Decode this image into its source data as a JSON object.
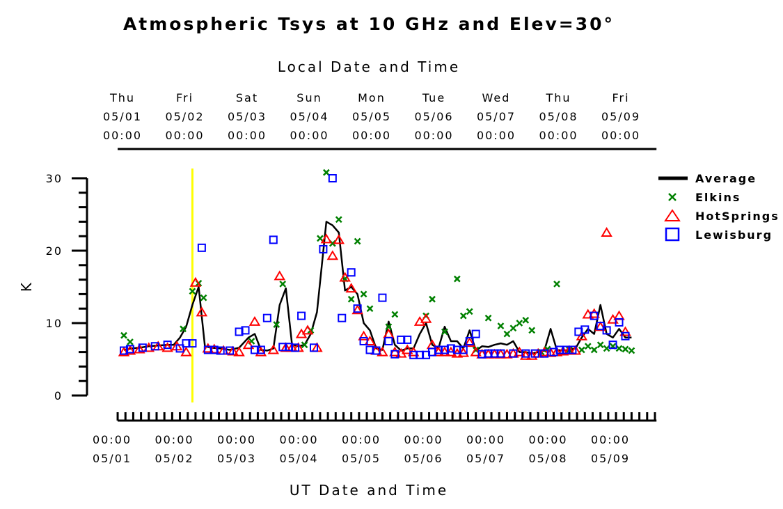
{
  "chart_data": {
    "type": "line",
    "title": "Atmospheric Tsys at 10 GHz and Elev=30°",
    "top_axis_title": "Local Date and Time",
    "bottom_axis_title": "UT Date and Time",
    "ylabel": "K",
    "ylim": [
      0,
      30
    ],
    "y_ticks": [
      0,
      10,
      20,
      30
    ],
    "x_range_days": [
      -0.1,
      8.55
    ],
    "marker_day": 1.1,
    "marker_color": "#ffff00",
    "top_ticks": [
      {
        "day": "Thu",
        "date": "05/01",
        "time": "00:00"
      },
      {
        "day": "Fri",
        "date": "05/02",
        "time": "00:00"
      },
      {
        "day": "Sat",
        "date": "05/03",
        "time": "00:00"
      },
      {
        "day": "Sun",
        "date": "05/04",
        "time": "00:00"
      },
      {
        "day": "Mon",
        "date": "05/05",
        "time": "00:00"
      },
      {
        "day": "Tue",
        "date": "05/06",
        "time": "00:00"
      },
      {
        "day": "Wed",
        "date": "05/07",
        "time": "00:00"
      },
      {
        "day": "Thu",
        "date": "05/08",
        "time": "00:00"
      },
      {
        "day": "Fri",
        "date": "05/09",
        "time": "00:00"
      }
    ],
    "bottom_ticks": [
      {
        "time": "00:00",
        "date": "05/01"
      },
      {
        "time": "00:00",
        "date": "05/02"
      },
      {
        "time": "00:00",
        "date": "05/03"
      },
      {
        "time": "00:00",
        "date": "05/04"
      },
      {
        "time": "00:00",
        "date": "05/05"
      },
      {
        "time": "00:00",
        "date": "05/06"
      },
      {
        "time": "00:00",
        "date": "05/07"
      },
      {
        "time": "00:00",
        "date": "05/08"
      },
      {
        "time": "00:00",
        "date": "05/09"
      }
    ],
    "legend_position": "right",
    "series": [
      {
        "name": "Average",
        "style": "line",
        "color": "#000000",
        "points": [
          [
            0.0,
            6.3
          ],
          [
            0.12,
            6.5
          ],
          [
            0.25,
            6.6
          ],
          [
            0.4,
            6.8
          ],
          [
            0.55,
            6.9
          ],
          [
            0.7,
            7.0
          ],
          [
            0.8,
            7.0
          ],
          [
            0.9,
            8.0
          ],
          [
            1.0,
            9.5
          ],
          [
            1.1,
            12.5
          ],
          [
            1.2,
            15.0
          ],
          [
            1.3,
            6.8
          ],
          [
            1.4,
            6.6
          ],
          [
            1.55,
            6.5
          ],
          [
            1.7,
            6.3
          ],
          [
            1.85,
            6.6
          ],
          [
            2.0,
            8.0
          ],
          [
            2.1,
            8.5
          ],
          [
            2.2,
            6.3
          ],
          [
            2.3,
            6.2
          ],
          [
            2.4,
            6.5
          ],
          [
            2.5,
            12.5
          ],
          [
            2.6,
            14.8
          ],
          [
            2.7,
            7.0
          ],
          [
            2.8,
            6.8
          ],
          [
            2.9,
            7.0
          ],
          [
            3.0,
            8.5
          ],
          [
            3.1,
            11.5
          ],
          [
            3.25,
            24.0
          ],
          [
            3.35,
            23.5
          ],
          [
            3.45,
            22.5
          ],
          [
            3.55,
            14.5
          ],
          [
            3.65,
            15.0
          ],
          [
            3.75,
            14.0
          ],
          [
            3.85,
            10.0
          ],
          [
            3.95,
            9.0
          ],
          [
            4.05,
            6.5
          ],
          [
            4.15,
            6.3
          ],
          [
            4.25,
            10.2
          ],
          [
            4.35,
            7.0
          ],
          [
            4.45,
            6.2
          ],
          [
            4.55,
            6.5
          ],
          [
            4.65,
            6.5
          ],
          [
            4.75,
            8.5
          ],
          [
            4.85,
            10.0
          ],
          [
            4.95,
            7.0
          ],
          [
            5.05,
            6.5
          ],
          [
            5.15,
            9.5
          ],
          [
            5.25,
            7.5
          ],
          [
            5.35,
            7.5
          ],
          [
            5.45,
            6.5
          ],
          [
            5.55,
            9.0
          ],
          [
            5.65,
            6.2
          ],
          [
            5.75,
            6.8
          ],
          [
            5.85,
            6.7
          ],
          [
            5.95,
            7.0
          ],
          [
            6.05,
            7.2
          ],
          [
            6.15,
            7.0
          ],
          [
            6.25,
            7.5
          ],
          [
            6.35,
            6.0
          ],
          [
            6.45,
            6.0
          ],
          [
            6.55,
            5.8
          ],
          [
            6.65,
            6.0
          ],
          [
            6.75,
            6.2
          ],
          [
            6.85,
            9.2
          ],
          [
            6.95,
            6.3
          ],
          [
            7.05,
            6.2
          ],
          [
            7.15,
            6.3
          ],
          [
            7.25,
            6.5
          ],
          [
            7.35,
            8.0
          ],
          [
            7.45,
            9.2
          ],
          [
            7.55,
            8.5
          ],
          [
            7.65,
            12.5
          ],
          [
            7.75,
            8.5
          ],
          [
            7.85,
            8.0
          ],
          [
            7.95,
            9.2
          ],
          [
            8.05,
            8.0
          ],
          [
            8.15,
            8.0
          ]
        ]
      },
      {
        "name": "Elkins",
        "style": "x",
        "color": "#008000",
        "points": [
          [
            0.0,
            8.3
          ],
          [
            0.1,
            7.4
          ],
          [
            0.95,
            9.2
          ],
          [
            1.1,
            14.4
          ],
          [
            1.2,
            15.5
          ],
          [
            1.28,
            13.5
          ],
          [
            2.05,
            7.5
          ],
          [
            2.45,
            9.8
          ],
          [
            2.55,
            15.4
          ],
          [
            2.9,
            7.0
          ],
          [
            3.0,
            9.0
          ],
          [
            3.15,
            21.7
          ],
          [
            3.25,
            30.8
          ],
          [
            3.35,
            21.0
          ],
          [
            3.45,
            24.3
          ],
          [
            3.55,
            16.1
          ],
          [
            3.65,
            13.3
          ],
          [
            3.75,
            21.3
          ],
          [
            3.85,
            14.0
          ],
          [
            3.95,
            12.0
          ],
          [
            4.25,
            9.5
          ],
          [
            4.35,
            11.2
          ],
          [
            4.85,
            11.0
          ],
          [
            4.95,
            13.3
          ],
          [
            5.15,
            8.8
          ],
          [
            5.35,
            16.1
          ],
          [
            5.45,
            11.0
          ],
          [
            5.55,
            11.6
          ],
          [
            5.65,
            6.3
          ],
          [
            5.85,
            10.7
          ],
          [
            6.05,
            9.6
          ],
          [
            6.15,
            8.5
          ],
          [
            6.25,
            9.3
          ],
          [
            6.35,
            10.0
          ],
          [
            6.45,
            10.4
          ],
          [
            6.55,
            9.0
          ],
          [
            6.7,
            6.0
          ],
          [
            6.8,
            6.4
          ],
          [
            6.95,
            15.4
          ],
          [
            7.15,
            6.3
          ],
          [
            7.35,
            6.3
          ],
          [
            7.45,
            6.8
          ],
          [
            7.55,
            6.3
          ],
          [
            7.65,
            7.0
          ],
          [
            7.75,
            6.5
          ],
          [
            7.85,
            6.8
          ],
          [
            7.95,
            6.5
          ],
          [
            8.05,
            6.4
          ],
          [
            8.15,
            6.2
          ]
        ]
      },
      {
        "name": "HotSprings",
        "style": "triangle",
        "color": "#ff0000",
        "points": [
          [
            0.0,
            6.0
          ],
          [
            0.1,
            6.2
          ],
          [
            0.25,
            6.4
          ],
          [
            0.4,
            6.6
          ],
          [
            0.55,
            6.8
          ],
          [
            0.7,
            6.6
          ],
          [
            0.85,
            6.8
          ],
          [
            1.0,
            6.0
          ],
          [
            1.15,
            15.6
          ],
          [
            1.25,
            11.5
          ],
          [
            1.35,
            6.5
          ],
          [
            1.45,
            6.4
          ],
          [
            1.6,
            6.2
          ],
          [
            1.75,
            6.1
          ],
          [
            1.85,
            6.0
          ],
          [
            2.0,
            7.0
          ],
          [
            2.1,
            10.2
          ],
          [
            2.2,
            6.0
          ],
          [
            2.4,
            6.3
          ],
          [
            2.5,
            16.5
          ],
          [
            2.6,
            6.6
          ],
          [
            2.7,
            6.6
          ],
          [
            2.8,
            6.6
          ],
          [
            2.85,
            8.5
          ],
          [
            2.95,
            9.0
          ],
          [
            3.1,
            6.6
          ],
          [
            3.25,
            21.6
          ],
          [
            3.35,
            19.3
          ],
          [
            3.45,
            21.5
          ],
          [
            3.55,
            16.3
          ],
          [
            3.65,
            14.8
          ],
          [
            3.75,
            11.8
          ],
          [
            3.85,
            8.2
          ],
          [
            3.95,
            7.5
          ],
          [
            4.05,
            6.2
          ],
          [
            4.15,
            6.0
          ],
          [
            4.25,
            8.5
          ],
          [
            4.35,
            6.0
          ],
          [
            4.45,
            5.8
          ],
          [
            4.55,
            6.3
          ],
          [
            4.65,
            6.0
          ],
          [
            4.75,
            10.2
          ],
          [
            4.85,
            10.6
          ],
          [
            4.95,
            7.0
          ],
          [
            5.05,
            6.0
          ],
          [
            5.15,
            6.0
          ],
          [
            5.25,
            6.0
          ],
          [
            5.35,
            5.8
          ],
          [
            5.45,
            5.9
          ],
          [
            5.55,
            7.3
          ],
          [
            5.65,
            6.0
          ],
          [
            5.75,
            5.7
          ],
          [
            5.85,
            5.7
          ],
          [
            5.95,
            5.7
          ],
          [
            6.05,
            5.7
          ],
          [
            6.15,
            5.7
          ],
          [
            6.25,
            5.8
          ],
          [
            6.35,
            6.0
          ],
          [
            6.45,
            5.5
          ],
          [
            6.55,
            5.5
          ],
          [
            6.65,
            5.8
          ],
          [
            6.75,
            6.0
          ],
          [
            6.85,
            5.9
          ],
          [
            6.95,
            6.0
          ],
          [
            7.05,
            6.1
          ],
          [
            7.15,
            6.2
          ],
          [
            7.25,
            6.2
          ],
          [
            7.35,
            8.2
          ],
          [
            7.45,
            11.2
          ],
          [
            7.55,
            11.3
          ],
          [
            7.65,
            9.5
          ],
          [
            7.75,
            22.5
          ],
          [
            7.85,
            10.5
          ],
          [
            7.95,
            11.0
          ],
          [
            8.05,
            8.8
          ]
        ]
      },
      {
        "name": "Lewisburg",
        "style": "square",
        "color": "#0000ff",
        "points": [
          [
            0.0,
            6.2
          ],
          [
            0.1,
            6.4
          ],
          [
            0.3,
            6.6
          ],
          [
            0.5,
            6.8
          ],
          [
            0.7,
            7.0
          ],
          [
            0.9,
            6.5
          ],
          [
            1.0,
            7.2
          ],
          [
            1.1,
            7.2
          ],
          [
            1.25,
            20.4
          ],
          [
            1.35,
            6.3
          ],
          [
            1.45,
            6.3
          ],
          [
            1.55,
            6.2
          ],
          [
            1.7,
            6.2
          ],
          [
            1.85,
            8.8
          ],
          [
            1.95,
            9.0
          ],
          [
            2.1,
            6.3
          ],
          [
            2.2,
            6.3
          ],
          [
            2.3,
            10.7
          ],
          [
            2.4,
            21.5
          ],
          [
            2.55,
            6.7
          ],
          [
            2.65,
            6.7
          ],
          [
            2.75,
            6.6
          ],
          [
            2.85,
            11.0
          ],
          [
            3.05,
            6.6
          ],
          [
            3.2,
            20.2
          ],
          [
            3.35,
            30.0
          ],
          [
            3.5,
            10.7
          ],
          [
            3.65,
            17.0
          ],
          [
            3.75,
            12.0
          ],
          [
            3.85,
            7.5
          ],
          [
            3.95,
            6.3
          ],
          [
            4.05,
            6.2
          ],
          [
            4.15,
            13.5
          ],
          [
            4.25,
            7.5
          ],
          [
            4.35,
            5.7
          ],
          [
            4.45,
            7.7
          ],
          [
            4.55,
            7.7
          ],
          [
            4.65,
            5.6
          ],
          [
            4.75,
            5.6
          ],
          [
            4.85,
            5.6
          ],
          [
            4.95,
            6.0
          ],
          [
            5.05,
            6.3
          ],
          [
            5.15,
            6.3
          ],
          [
            5.25,
            6.5
          ],
          [
            5.35,
            6.3
          ],
          [
            5.45,
            6.3
          ],
          [
            5.55,
            7.5
          ],
          [
            5.65,
            8.5
          ],
          [
            5.75,
            5.7
          ],
          [
            5.85,
            5.8
          ],
          [
            5.95,
            5.8
          ],
          [
            6.05,
            5.8
          ],
          [
            6.25,
            5.8
          ],
          [
            6.45,
            5.8
          ],
          [
            6.6,
            5.8
          ],
          [
            6.75,
            5.8
          ],
          [
            6.9,
            6.0
          ],
          [
            7.0,
            6.3
          ],
          [
            7.1,
            6.3
          ],
          [
            7.2,
            6.3
          ],
          [
            7.3,
            8.8
          ],
          [
            7.4,
            9.1
          ],
          [
            7.55,
            11.0
          ],
          [
            7.65,
            9.6
          ],
          [
            7.75,
            9.0
          ],
          [
            7.85,
            7.0
          ],
          [
            7.95,
            10.1
          ],
          [
            8.05,
            8.2
          ]
        ]
      }
    ]
  }
}
